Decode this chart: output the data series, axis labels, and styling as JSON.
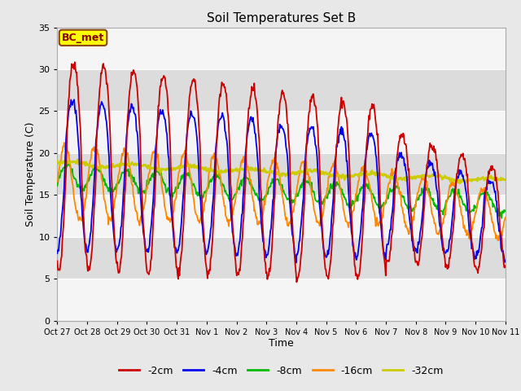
{
  "title": "Soil Temperatures Set B",
  "xlabel": "Time",
  "ylabel": "Soil Temperature (C)",
  "ylim": [
    0,
    35
  ],
  "tick_labels": [
    "Oct 27",
    "Oct 28",
    "Oct 29",
    "Oct 30",
    "Oct 31",
    "Nov 1",
    "Nov 2",
    "Nov 3",
    "Nov 4",
    "Nov 5",
    "Nov 6",
    "Nov 7",
    "Nov 8",
    "Nov 9",
    "Nov 10",
    "Nov 11"
  ],
  "legend": [
    "-2cm",
    "-4cm",
    "-8cm",
    "-16cm",
    "-32cm"
  ],
  "legend_colors": [
    "#cc0000",
    "#0000ee",
    "#00bb00",
    "#ff8800",
    "#cccc00"
  ],
  "annotation_text": "BC_met",
  "annotation_bg": "#ffff00",
  "annotation_border": "#8B4513",
  "background_color": "#e8e8e8",
  "plot_bg_light": "#f5f5f5",
  "plot_bg_dark": "#dcdcdc",
  "n_days": 15,
  "pts_per_day": 48,
  "yticks": [
    0,
    5,
    10,
    15,
    20,
    25,
    30,
    35
  ]
}
